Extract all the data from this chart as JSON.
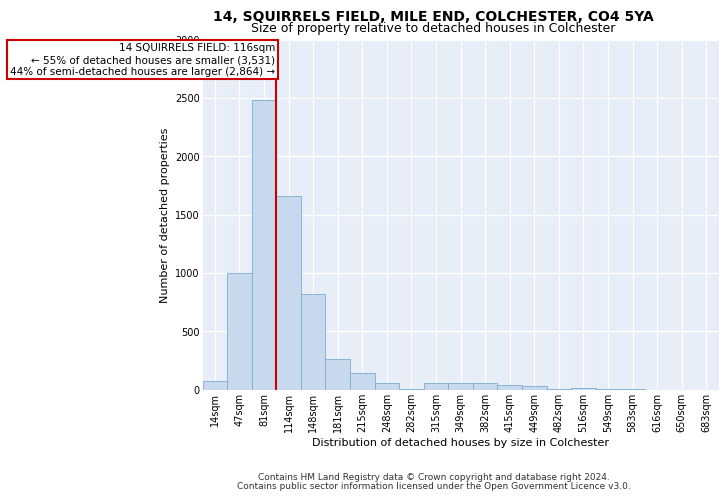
{
  "title": "14, SQUIRRELS FIELD, MILE END, COLCHESTER, CO4 5YA",
  "subtitle": "Size of property relative to detached houses in Colchester",
  "xlabel": "Distribution of detached houses by size in Colchester",
  "ylabel": "Number of detached properties",
  "footnote1": "Contains HM Land Registry data © Crown copyright and database right 2024.",
  "footnote2": "Contains public sector information licensed under the Open Government Licence v3.0.",
  "annotation_line1": "14 SQUIRRELS FIELD: 116sqm",
  "annotation_line2": "← 55% of detached houses are smaller (3,531)",
  "annotation_line3": "44% of semi-detached houses are larger (2,864) →",
  "bin_labels": [
    "14sqm",
    "47sqm",
    "81sqm",
    "114sqm",
    "148sqm",
    "181sqm",
    "215sqm",
    "248sqm",
    "282sqm",
    "315sqm",
    "349sqm",
    "382sqm",
    "415sqm",
    "449sqm",
    "482sqm",
    "516sqm",
    "549sqm",
    "583sqm",
    "616sqm",
    "650sqm",
    "683sqm"
  ],
  "bar_values": [
    70,
    1000,
    2480,
    1660,
    820,
    260,
    140,
    60,
    5,
    60,
    55,
    55,
    40,
    30,
    5,
    10,
    3,
    2,
    0,
    0,
    0
  ],
  "bar_color": "#c8d9ee",
  "bar_edge_color": "#7aadd4",
  "property_line_color": "#cc0000",
  "annotation_box_color": "#cc0000",
  "background_color": "#e8eef7",
  "ylim": [
    0,
    3000
  ],
  "yticks": [
    0,
    500,
    1000,
    1500,
    2000,
    2500,
    3000
  ],
  "title_fontsize": 10,
  "subtitle_fontsize": 9,
  "axis_label_fontsize": 8,
  "tick_fontsize": 7,
  "annotation_fontsize": 7.5,
  "footnote_fontsize": 6.5
}
